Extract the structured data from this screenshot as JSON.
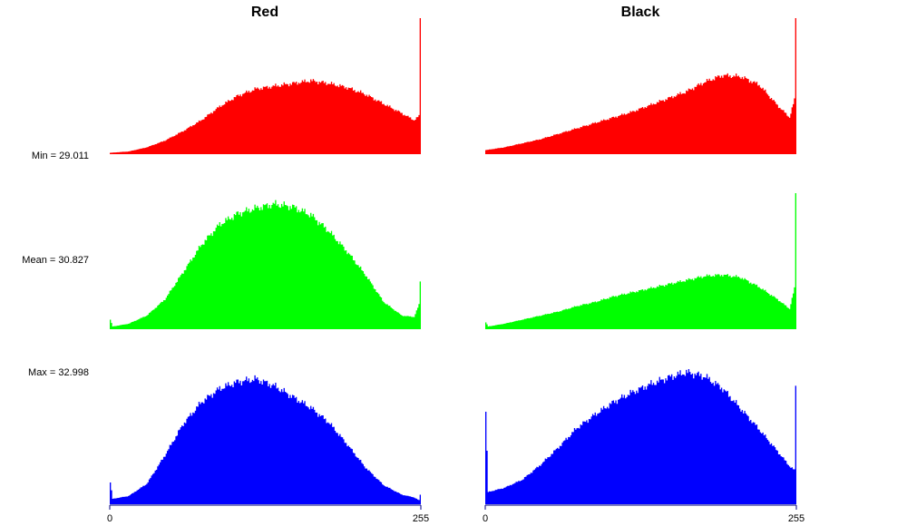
{
  "chart_data": {
    "type": "bar",
    "x_range": [
      0,
      255
    ],
    "x_tick_labels": [
      "0",
      "255"
    ],
    "columns": [
      {
        "title": "Red"
      },
      {
        "title": "Black"
      }
    ],
    "stats": {
      "min": "Min = 29.011",
      "mean": "Mean = 30.827",
      "max": "Max = 32.998"
    },
    "colors": {
      "red": "#ff0000",
      "green": "#00ff00",
      "blue": "#0000ff",
      "axis": "#000080"
    },
    "histograms": [
      {
        "column": "Red",
        "channel": "red",
        "color": "#ff0000",
        "x": [
          0,
          15,
          30,
          45,
          60,
          75,
          90,
          105,
          120,
          135,
          150,
          165,
          180,
          195,
          210,
          225,
          240,
          250,
          254,
          255
        ],
        "y": [
          0.01,
          0.02,
          0.05,
          0.1,
          0.17,
          0.25,
          0.35,
          0.43,
          0.48,
          0.5,
          0.52,
          0.54,
          0.52,
          0.49,
          0.44,
          0.37,
          0.3,
          0.25,
          0.28,
          1.0
        ]
      },
      {
        "column": "Black",
        "channel": "red",
        "color": "#ff0000",
        "x": [
          0,
          15,
          30,
          45,
          60,
          75,
          90,
          105,
          120,
          135,
          150,
          165,
          180,
          195,
          210,
          225,
          240,
          250,
          254,
          255
        ],
        "y": [
          0.03,
          0.05,
          0.08,
          0.11,
          0.15,
          0.19,
          0.23,
          0.27,
          0.31,
          0.36,
          0.41,
          0.46,
          0.53,
          0.58,
          0.57,
          0.51,
          0.36,
          0.27,
          0.4,
          1.0
        ]
      },
      {
        "column": "Red",
        "channel": "green",
        "color": "#00ff00",
        "x": [
          0,
          2,
          15,
          30,
          45,
          60,
          75,
          90,
          105,
          120,
          135,
          150,
          165,
          180,
          195,
          210,
          225,
          240,
          250,
          254,
          255
        ],
        "y": [
          0.07,
          0.02,
          0.04,
          0.1,
          0.22,
          0.42,
          0.62,
          0.77,
          0.85,
          0.89,
          0.92,
          0.9,
          0.84,
          0.72,
          0.57,
          0.4,
          0.2,
          0.1,
          0.09,
          0.18,
          0.35
        ]
      },
      {
        "column": "Black",
        "channel": "green",
        "color": "#00ff00",
        "x": [
          0,
          2,
          15,
          30,
          45,
          60,
          75,
          90,
          105,
          120,
          135,
          150,
          165,
          180,
          195,
          210,
          225,
          240,
          250,
          254,
          255
        ],
        "y": [
          0.05,
          0.02,
          0.04,
          0.07,
          0.1,
          0.13,
          0.17,
          0.2,
          0.24,
          0.27,
          0.3,
          0.33,
          0.36,
          0.39,
          0.4,
          0.38,
          0.31,
          0.22,
          0.15,
          0.3,
          1.0
        ]
      },
      {
        "column": "Red",
        "channel": "blue",
        "color": "#0000ff",
        "x": [
          0,
          2,
          15,
          30,
          45,
          60,
          75,
          90,
          105,
          120,
          135,
          150,
          165,
          180,
          195,
          210,
          225,
          240,
          250,
          254,
          255
        ],
        "y": [
          0.16,
          0.04,
          0.06,
          0.15,
          0.36,
          0.59,
          0.75,
          0.85,
          0.9,
          0.92,
          0.87,
          0.79,
          0.71,
          0.6,
          0.44,
          0.27,
          0.14,
          0.07,
          0.05,
          0.03,
          0.07
        ]
      },
      {
        "column": "Black",
        "channel": "blue",
        "color": "#0000ff",
        "x": [
          0,
          2,
          15,
          30,
          45,
          60,
          75,
          90,
          105,
          120,
          135,
          150,
          165,
          180,
          195,
          210,
          225,
          240,
          250,
          254,
          255
        ],
        "y": [
          0.68,
          0.09,
          0.12,
          0.18,
          0.29,
          0.42,
          0.56,
          0.66,
          0.75,
          0.82,
          0.88,
          0.93,
          0.97,
          0.94,
          0.85,
          0.7,
          0.55,
          0.39,
          0.28,
          0.25,
          0.87
        ]
      }
    ]
  }
}
